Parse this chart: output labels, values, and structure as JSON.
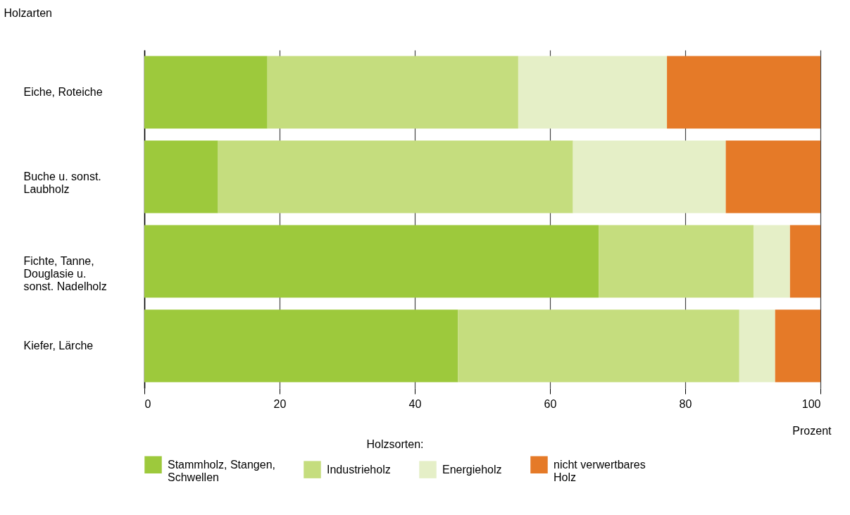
{
  "chart_data": {
    "type": "bar",
    "orientation": "horizontal",
    "stacked": true,
    "ylabel": "Holzarten",
    "xlabel": "Prozent",
    "legend_title": "Holzsorten:",
    "legend": "bottom",
    "grid": "x",
    "categories": [
      "Eiche, Roteiche",
      "Buche u. sonst. Laubholz",
      "Fichte, Tanne, Douglasie u. sonst. Nadelholz",
      "Kiefer, Lärche"
    ],
    "xlim": [
      0,
      100
    ],
    "xticks": [
      0,
      20,
      40,
      60,
      80,
      100
    ],
    "series": [
      {
        "name": "Stammholz, Stangen, Schwellen",
        "color": "#9dc93c",
        "values": [
          18.2,
          10.9,
          67.2,
          46.4
        ]
      },
      {
        "name": "Industrieholz",
        "color": "#c5dd7e",
        "values": [
          37.1,
          52.5,
          22.9,
          41.6
        ]
      },
      {
        "name": "Energieholz",
        "color": "#e5efc7",
        "values": [
          22.0,
          22.6,
          5.4,
          5.3
        ]
      },
      {
        "name": "nicht verwertbares Holz",
        "color": "#e57a28",
        "values": [
          22.7,
          14.0,
          4.5,
          6.7
        ]
      }
    ]
  }
}
